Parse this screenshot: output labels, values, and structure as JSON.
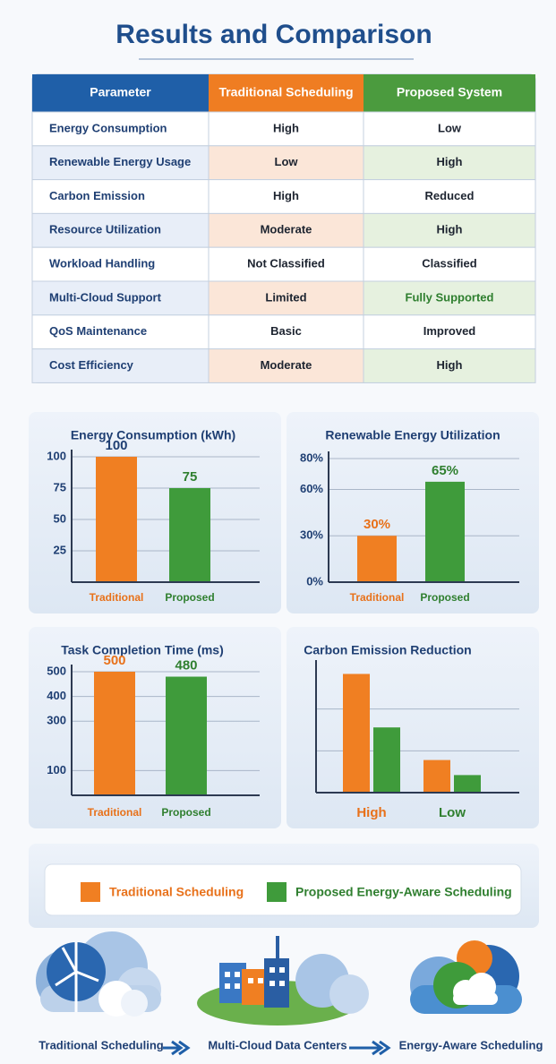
{
  "title": "Results and Comparison",
  "table": {
    "header": [
      "Parameter",
      "Traditional Scheduling",
      "Proposed System"
    ],
    "rows": [
      [
        "Energy Consumption",
        "High",
        "Low"
      ],
      [
        "Renewable Energy Usage",
        "Low",
        "High"
      ],
      [
        "Carbon Emission",
        "High",
        "Reduced"
      ],
      [
        "Resource Utilization",
        "Moderate",
        "High"
      ],
      [
        "Workload Handling",
        "Not Classified",
        "Classified"
      ],
      [
        "Multi-Cloud Support",
        "Limited",
        "Fully Supported"
      ],
      [
        "QoS Maintenance",
        "Basic",
        "Improved"
      ],
      [
        "Cost Efficiency",
        "Moderate",
        "High"
      ]
    ]
  },
  "chart_data": [
    {
      "type": "bar",
      "title": "Energy Consumption (kWh)",
      "categories": [
        "Traditional",
        "Proposed"
      ],
      "values": [
        100,
        75
      ],
      "colors": [
        "#f07f22",
        "#3f9b3b"
      ],
      "value_label_colors": [
        "#1f3f73",
        "#2f7f2f"
      ],
      "category_colors": [
        "#e8711a",
        "#2f7f2f"
      ],
      "ylim": [
        0,
        100
      ],
      "yticks": [
        25,
        50,
        75,
        100
      ],
      "grid": true
    },
    {
      "type": "bar",
      "title": "Renewable Energy Utilization",
      "categories": [
        "Traditional",
        "Proposed"
      ],
      "values": [
        30,
        65
      ],
      "value_labels": [
        "30%",
        "65%"
      ],
      "colors": [
        "#f07f22",
        "#3f9b3b"
      ],
      "value_label_colors": [
        "#e8711a",
        "#2f7f2f"
      ],
      "category_colors": [
        "#e8711a",
        "#2f7f2f"
      ],
      "ylim": [
        0,
        80
      ],
      "yticks": [
        {
          "value": 0,
          "label": "0%"
        },
        {
          "value": 30,
          "label": "30%"
        },
        {
          "value": 60,
          "label": "60%"
        },
        {
          "value": 80,
          "label": "80%"
        }
      ],
      "grid": true
    },
    {
      "type": "bar",
      "title": "Task Completion Time (ms)",
      "categories": [
        "Traditional",
        "Proposed"
      ],
      "values": [
        500,
        480
      ],
      "colors": [
        "#f07f22",
        "#3f9b3b"
      ],
      "value_label_colors": [
        "#e8711a",
        "#2f7f2f"
      ],
      "category_colors": [
        "#e8711a",
        "#2f7f2f"
      ],
      "ylim": [
        0,
        500
      ],
      "yticks": [
        100,
        300,
        400,
        500
      ],
      "grid": true
    },
    {
      "type": "grouped_bar",
      "title": "Carbon Emission Reduction",
      "categories": [
        "High",
        "Low"
      ],
      "category_colors": [
        "#e8711a",
        "#2f7f2f"
      ],
      "series": [
        {
          "color": "#f07f22",
          "values": [
            2.84,
            0.78
          ]
        },
        {
          "color": "#3f9b3b",
          "values": [
            1.56,
            0.42
          ]
        }
      ],
      "ylim": [
        0,
        3
      ],
      "grid": true
    }
  ],
  "legend": [
    {
      "label": "Traditional Scheduling",
      "color": "#f07f22"
    },
    {
      "label": "Proposed Energy-Aware Scheduling",
      "color": "#3f9b3b"
    }
  ],
  "footer": [
    "Traditional Scheduling",
    "Multi-Cloud Data Centers",
    "Energy-Aware Scheduling"
  ]
}
